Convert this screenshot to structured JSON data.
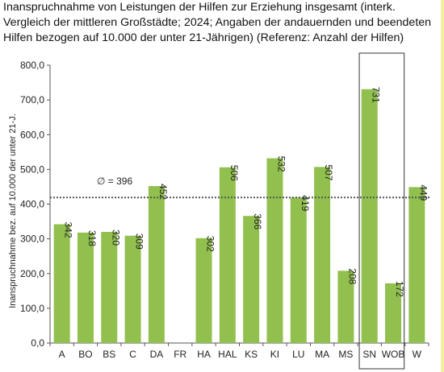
{
  "title_lines": [
    "Inanspruchnahme von Leistungen der Hilfen zur Erziehung insgesamt (interk.",
    "Vergleich der mittleren Großstädte; 2024; Angaben der andauernden und beendeten",
    "Hilfen bezogen auf 10.000 der unter 21-Jährigen) (Referenz: Anzahl der Hilfen)"
  ],
  "chart_data": {
    "type": "bar",
    "categories": [
      "A",
      "BO",
      "BS",
      "C",
      "DA",
      "FR",
      "HA",
      "HAL",
      "KS",
      "KI",
      "LU",
      "MA",
      "MS",
      "SN",
      "WOB",
      "W"
    ],
    "values": [
      342,
      318,
      320,
      309,
      452,
      null,
      302,
      506,
      366,
      532,
      419,
      507,
      208,
      731,
      172,
      449
    ],
    "value_labels": [
      "342",
      "318",
      "320",
      "309",
      "452",
      "",
      "302",
      "506",
      "366",
      "532",
      "419",
      "507",
      "208",
      "731",
      "172",
      "449"
    ],
    "ylabel": "Inanspruchnahme bez. auf 10.000 der unter 21-J.",
    "ylim": [
      0,
      800
    ],
    "yticks": [
      "0,0",
      "100,0",
      "200,0",
      "300,0",
      "400,0",
      "500,0",
      "600,0",
      "700,0",
      "800,0"
    ],
    "average": {
      "value": 396,
      "label": "∅ = 396"
    },
    "highlight_box": [
      "SN",
      "WOB"
    ],
    "bar_color": "#92c04e",
    "grid": false
  }
}
